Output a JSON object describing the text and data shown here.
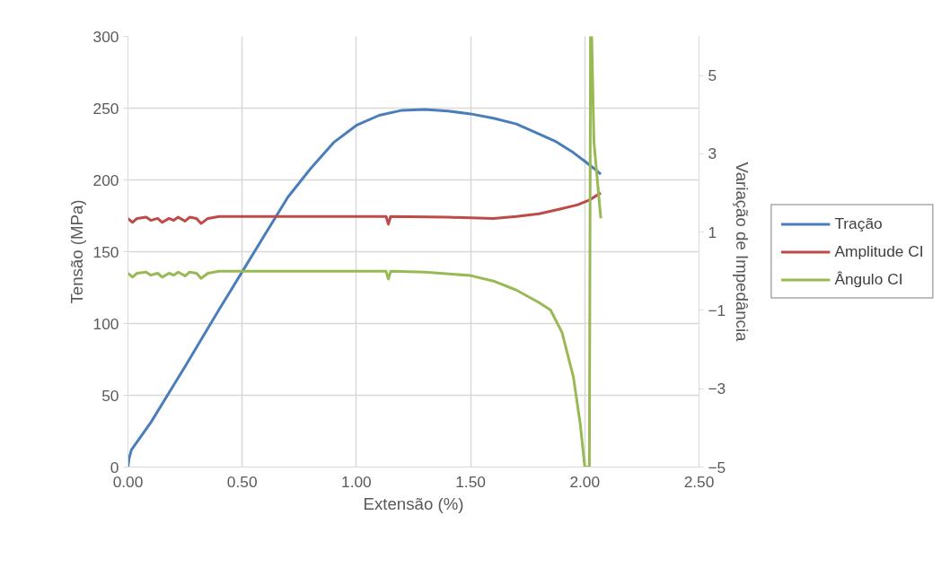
{
  "chart_data": {
    "type": "line",
    "xlabel": "Extensão (%)",
    "ylabel": "Tensão (MPa)",
    "y2label": "Variação de Impedância",
    "xlim": [
      0,
      2.5
    ],
    "xticks": [
      {
        "value": 0,
        "label": "0.00"
      },
      {
        "value": 0.5,
        "label": "0.50"
      },
      {
        "value": 1,
        "label": "1.00"
      },
      {
        "value": 1.5,
        "label": "1.50"
      },
      {
        "value": 2,
        "label": "2.00"
      },
      {
        "value": 2.5,
        "label": "2.50"
      }
    ],
    "ylim": [
      0,
      300
    ],
    "yticks": [
      0,
      50,
      100,
      150,
      200,
      250,
      300
    ],
    "y2lim": [
      -5,
      6
    ],
    "y2ticks": [
      -5,
      -3,
      -1,
      1,
      3,
      5
    ],
    "grid": true,
    "legend": "right",
    "line_style": "solid",
    "marker": "none",
    "series": [
      {
        "name": "Tração",
        "color": "#4a7ebb",
        "x": [
          0,
          0.005,
          0.015,
          0.1,
          0.25,
          0.4,
          0.5,
          0.6,
          0.7,
          0.8,
          0.9,
          1.0,
          1.1,
          1.2,
          1.3,
          1.4,
          1.5,
          1.6,
          1.7,
          1.8,
          1.87,
          1.95,
          2.0,
          2.04,
          2.07
        ],
        "values": [
          0,
          6,
          12,
          31,
          70,
          110,
          136,
          162,
          188,
          208,
          226,
          238,
          245,
          248.5,
          249,
          248,
          246,
          243,
          239,
          232,
          227,
          219,
          213,
          208,
          204
        ]
      },
      {
        "name": "Amplitude CI",
        "color": "#be4b48",
        "axis": "y2",
        "x": [
          0,
          0.02,
          0.04,
          0.08,
          0.1,
          0.13,
          0.15,
          0.18,
          0.2,
          0.22,
          0.25,
          0.27,
          0.3,
          0.32,
          0.35,
          0.4,
          0.8,
          1.13,
          1.14,
          1.15,
          1.4,
          1.6,
          1.7,
          1.8,
          1.9,
          1.97,
          2.02,
          2.07
        ],
        "values": [
          1.35,
          1.25,
          1.35,
          1.38,
          1.3,
          1.35,
          1.25,
          1.35,
          1.3,
          1.38,
          1.28,
          1.38,
          1.35,
          1.22,
          1.35,
          1.4,
          1.4,
          1.4,
          1.2,
          1.4,
          1.38,
          1.35,
          1.4,
          1.47,
          1.6,
          1.7,
          1.82,
          2.0
        ]
      },
      {
        "name": "Ângulo CI",
        "color": "#98b954",
        "axis": "y2",
        "x": [
          0,
          0.02,
          0.04,
          0.08,
          0.1,
          0.13,
          0.15,
          0.18,
          0.2,
          0.22,
          0.25,
          0.27,
          0.3,
          0.32,
          0.35,
          0.4,
          0.8,
          1.13,
          1.14,
          1.15,
          1.3,
          1.5,
          1.6,
          1.7,
          1.8,
          1.85,
          1.9,
          1.95,
          1.98,
          2.0,
          2.02,
          2.025,
          2.03,
          2.04,
          2.06,
          2.07
        ],
        "values": [
          -0.05,
          -0.15,
          -0.05,
          -0.02,
          -0.1,
          -0.05,
          -0.15,
          -0.05,
          -0.1,
          -0.02,
          -0.12,
          -0.02,
          -0.05,
          -0.18,
          -0.05,
          0,
          0,
          0,
          -0.2,
          0,
          -0.02,
          -0.11,
          -0.25,
          -0.48,
          -0.8,
          -0.99,
          -1.56,
          -2.7,
          -3.9,
          -5,
          -5,
          6,
          6,
          3.3,
          2.0,
          1.35
        ]
      }
    ]
  }
}
